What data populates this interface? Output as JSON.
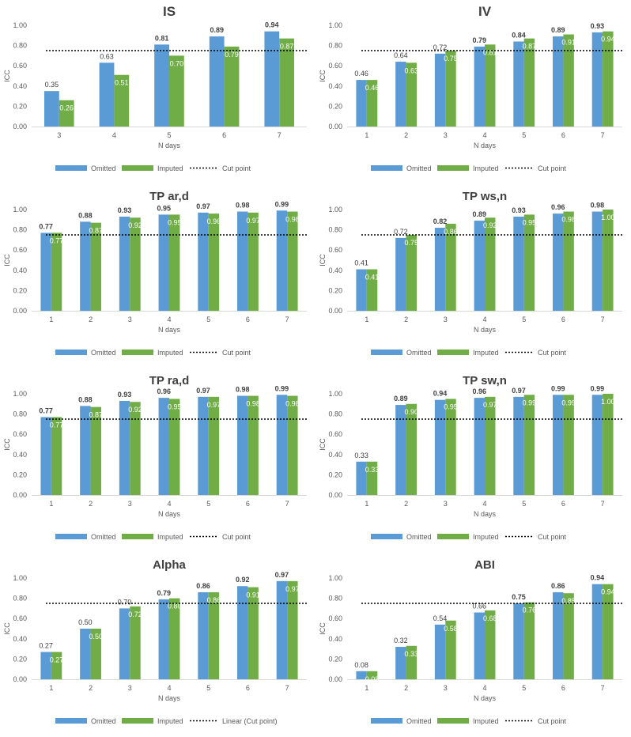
{
  "legend": {
    "omitted": "Omitted",
    "imputed": "Imputed",
    "cut": "Cut point",
    "cut_alpha": "Linear (Cut point)"
  },
  "colors": {
    "omitted": "#5B9BD5",
    "imputed": "#70AD47",
    "cut_line": "#000000"
  },
  "chart_data": [
    {
      "type": "bar",
      "title": "IS",
      "xlabel": "N days",
      "ylabel": "ICC",
      "ylim": [
        0,
        1
      ],
      "yticks": [
        "0.00",
        "0.20",
        "0.40",
        "0.60",
        "0.80",
        "1.00"
      ],
      "categories": [
        "3",
        "4",
        "5",
        "6",
        "7"
      ],
      "series": [
        {
          "name": "Omitted",
          "values": [
            0.35,
            0.63,
            0.81,
            0.89,
            0.94
          ],
          "labels": [
            "0.35",
            "0.63",
            "0.81",
            "0.89",
            "0.94"
          ]
        },
        {
          "name": "Imputed",
          "values": [
            0.26,
            0.51,
            0.7,
            0.79,
            0.87
          ],
          "labels": [
            "0.26",
            "0.51",
            "0.70",
            "0.79",
            "0.87"
          ]
        }
      ],
      "cut_point": 0.75,
      "legend_key": "cut",
      "bold_from": 2
    },
    {
      "type": "bar",
      "title": "IV",
      "xlabel": "N days",
      "ylabel": "ICC",
      "ylim": [
        0,
        1
      ],
      "yticks": [
        "0.00",
        "0.20",
        "0.40",
        "0.60",
        "0.80",
        "1.00"
      ],
      "categories": [
        "1",
        "2",
        "3",
        "4",
        "5",
        "6",
        "7"
      ],
      "series": [
        {
          "name": "Omitted",
          "values": [
            0.46,
            0.64,
            0.72,
            0.79,
            0.84,
            0.89,
            0.93
          ],
          "labels": [
            "0.46",
            "0.64",
            "0.72",
            "0.79",
            "0.84",
            "0.89",
            "0.93"
          ]
        },
        {
          "name": "Imputed",
          "values": [
            0.46,
            0.63,
            0.75,
            0.81,
            0.87,
            0.91,
            0.94
          ],
          "labels": [
            "0.46",
            "0.63",
            "0.75",
            "0.81",
            "0.87",
            "0.91",
            "0.94"
          ]
        }
      ],
      "cut_point": 0.75,
      "legend_key": "cut",
      "bold_from": 3
    },
    {
      "type": "bar",
      "title": "TP ar,d",
      "xlabel": "N days",
      "ylabel": "ICC",
      "ylim": [
        0,
        1
      ],
      "yticks": [
        "0.00",
        "0.20",
        "0.40",
        "0.60",
        "0.80",
        "1.00"
      ],
      "categories": [
        "1",
        "2",
        "3",
        "4",
        "5",
        "6",
        "7"
      ],
      "series": [
        {
          "name": "Omitted",
          "values": [
            0.77,
            0.88,
            0.93,
            0.95,
            0.97,
            0.98,
            0.99
          ],
          "labels": [
            "0.77",
            "0.88",
            "0.93",
            "0.95",
            "0.97",
            "0.98",
            "0.99"
          ]
        },
        {
          "name": "Imputed",
          "values": [
            0.77,
            0.87,
            0.92,
            0.95,
            0.96,
            0.97,
            0.98
          ],
          "labels": [
            "0.77",
            "0.87",
            "0.92",
            "0.95",
            "0.96",
            "0.97",
            "0.98"
          ]
        }
      ],
      "cut_point": 0.75,
      "legend_key": "cut",
      "bold_from": 0
    },
    {
      "type": "bar",
      "title": "TP ws,n",
      "xlabel": "N days",
      "ylabel": "ICC",
      "ylim": [
        0,
        1
      ],
      "yticks": [
        "0.00",
        "0.20",
        "0.40",
        "0.60",
        "0.80",
        "1.00"
      ],
      "categories": [
        "1",
        "2",
        "3",
        "4",
        "5",
        "6",
        "7"
      ],
      "series": [
        {
          "name": "Omitted",
          "values": [
            0.41,
            0.72,
            0.82,
            0.89,
            0.93,
            0.96,
            0.98
          ],
          "labels": [
            "0.41",
            "0.72",
            "0.82",
            "0.89",
            "0.93",
            "0.96",
            "0.98"
          ]
        },
        {
          "name": "Imputed",
          "values": [
            0.41,
            0.75,
            0.86,
            0.92,
            0.95,
            0.98,
            1.0
          ],
          "labels": [
            "0.41",
            "0.75",
            "0.86",
            "0.92",
            "0.95",
            "0.98",
            "1.00"
          ]
        }
      ],
      "cut_point": 0.75,
      "legend_key": "cut",
      "bold_from": 2
    },
    {
      "type": "bar",
      "title": "TP ra,d",
      "xlabel": "N days",
      "ylabel": "ICC",
      "ylim": [
        0,
        1
      ],
      "yticks": [
        "0.00",
        "0.20",
        "0.40",
        "0.60",
        "0.80",
        "1.00"
      ],
      "categories": [
        "1",
        "2",
        "3",
        "4",
        "5",
        "6",
        "7"
      ],
      "series": [
        {
          "name": "Omitted",
          "values": [
            0.77,
            0.88,
            0.93,
            0.96,
            0.97,
            0.98,
            0.99
          ],
          "labels": [
            "0.77",
            "0.88",
            "0.93",
            "0.96",
            "0.97",
            "0.98",
            "0.99"
          ]
        },
        {
          "name": "Imputed",
          "values": [
            0.77,
            0.87,
            0.92,
            0.95,
            0.97,
            0.98,
            0.98
          ],
          "labels": [
            "0.77",
            "0.87",
            "0.92",
            "0.95",
            "0.97",
            "0.98",
            "0.98"
          ]
        }
      ],
      "cut_point": 0.75,
      "legend_key": "cut",
      "bold_from": 0
    },
    {
      "type": "bar",
      "title": "TP sw,n",
      "xlabel": "N days",
      "ylabel": "ICC",
      "ylim": [
        0,
        1
      ],
      "yticks": [
        "0.00",
        "0.20",
        "0.40",
        "0.60",
        "0.80",
        "1.00"
      ],
      "categories": [
        "1",
        "2",
        "3",
        "4",
        "5",
        "6",
        "7"
      ],
      "series": [
        {
          "name": "Omitted",
          "values": [
            0.33,
            0.89,
            0.94,
            0.96,
            0.97,
            0.99,
            0.99
          ],
          "labels": [
            "0.33",
            "0.89",
            "0.94",
            "0.96",
            "0.97",
            "0.99",
            "0.99"
          ]
        },
        {
          "name": "Imputed",
          "values": [
            0.33,
            0.9,
            0.95,
            0.97,
            0.99,
            0.99,
            1.0
          ],
          "labels": [
            "0.33",
            "0.90",
            "0.95",
            "0.97",
            "0.99",
            "0.99",
            "1.00"
          ]
        }
      ],
      "cut_point": 0.75,
      "legend_key": "cut",
      "bold_from": 1
    },
    {
      "type": "bar",
      "title": "Alpha",
      "xlabel": "N days",
      "ylabel": "ICC",
      "ylim": [
        0,
        1
      ],
      "yticks": [
        "0.00",
        "0.20",
        "0.40",
        "0.60",
        "0.80",
        "1.00"
      ],
      "categories": [
        "1",
        "2",
        "3",
        "4",
        "5",
        "6",
        "7"
      ],
      "series": [
        {
          "name": "Omitted",
          "values": [
            0.27,
            0.5,
            0.7,
            0.79,
            0.86,
            0.92,
            0.97
          ],
          "labels": [
            "0.27",
            "0.50",
            "0.70",
            "0.79",
            "0.86",
            "0.92",
            "0.97"
          ]
        },
        {
          "name": "Imputed",
          "values": [
            0.27,
            0.5,
            0.72,
            0.8,
            0.86,
            0.91,
            0.97
          ],
          "labels": [
            "0.27",
            "0.50",
            "0.72",
            "0.80",
            "0.86",
            "0.91",
            "0.97"
          ]
        }
      ],
      "cut_point": 0.75,
      "legend_key": "cut_alpha",
      "bold_from": 3
    },
    {
      "type": "bar",
      "title": "ABI",
      "xlabel": "N days",
      "ylabel": "ICC",
      "ylim": [
        0,
        1
      ],
      "yticks": [
        "0.00",
        "0.20",
        "0.40",
        "0.60",
        "0.80",
        "1.00"
      ],
      "categories": [
        "1",
        "2",
        "3",
        "4",
        "5",
        "6",
        "7"
      ],
      "series": [
        {
          "name": "Omitted",
          "values": [
            0.08,
            0.32,
            0.54,
            0.66,
            0.75,
            0.86,
            0.94
          ],
          "labels": [
            "0.08",
            "0.32",
            "0.54",
            "0.66",
            "0.75",
            "0.86",
            "0.94"
          ]
        },
        {
          "name": "Imputed",
          "values": [
            0.08,
            0.33,
            0.58,
            0.68,
            0.76,
            0.85,
            0.94
          ],
          "labels": [
            "0.08",
            "0.33",
            "0.58",
            "0.68",
            "0.76",
            "0.85",
            "0.94"
          ]
        }
      ],
      "cut_point": 0.75,
      "legend_key": "cut",
      "bold_from": 4
    }
  ]
}
